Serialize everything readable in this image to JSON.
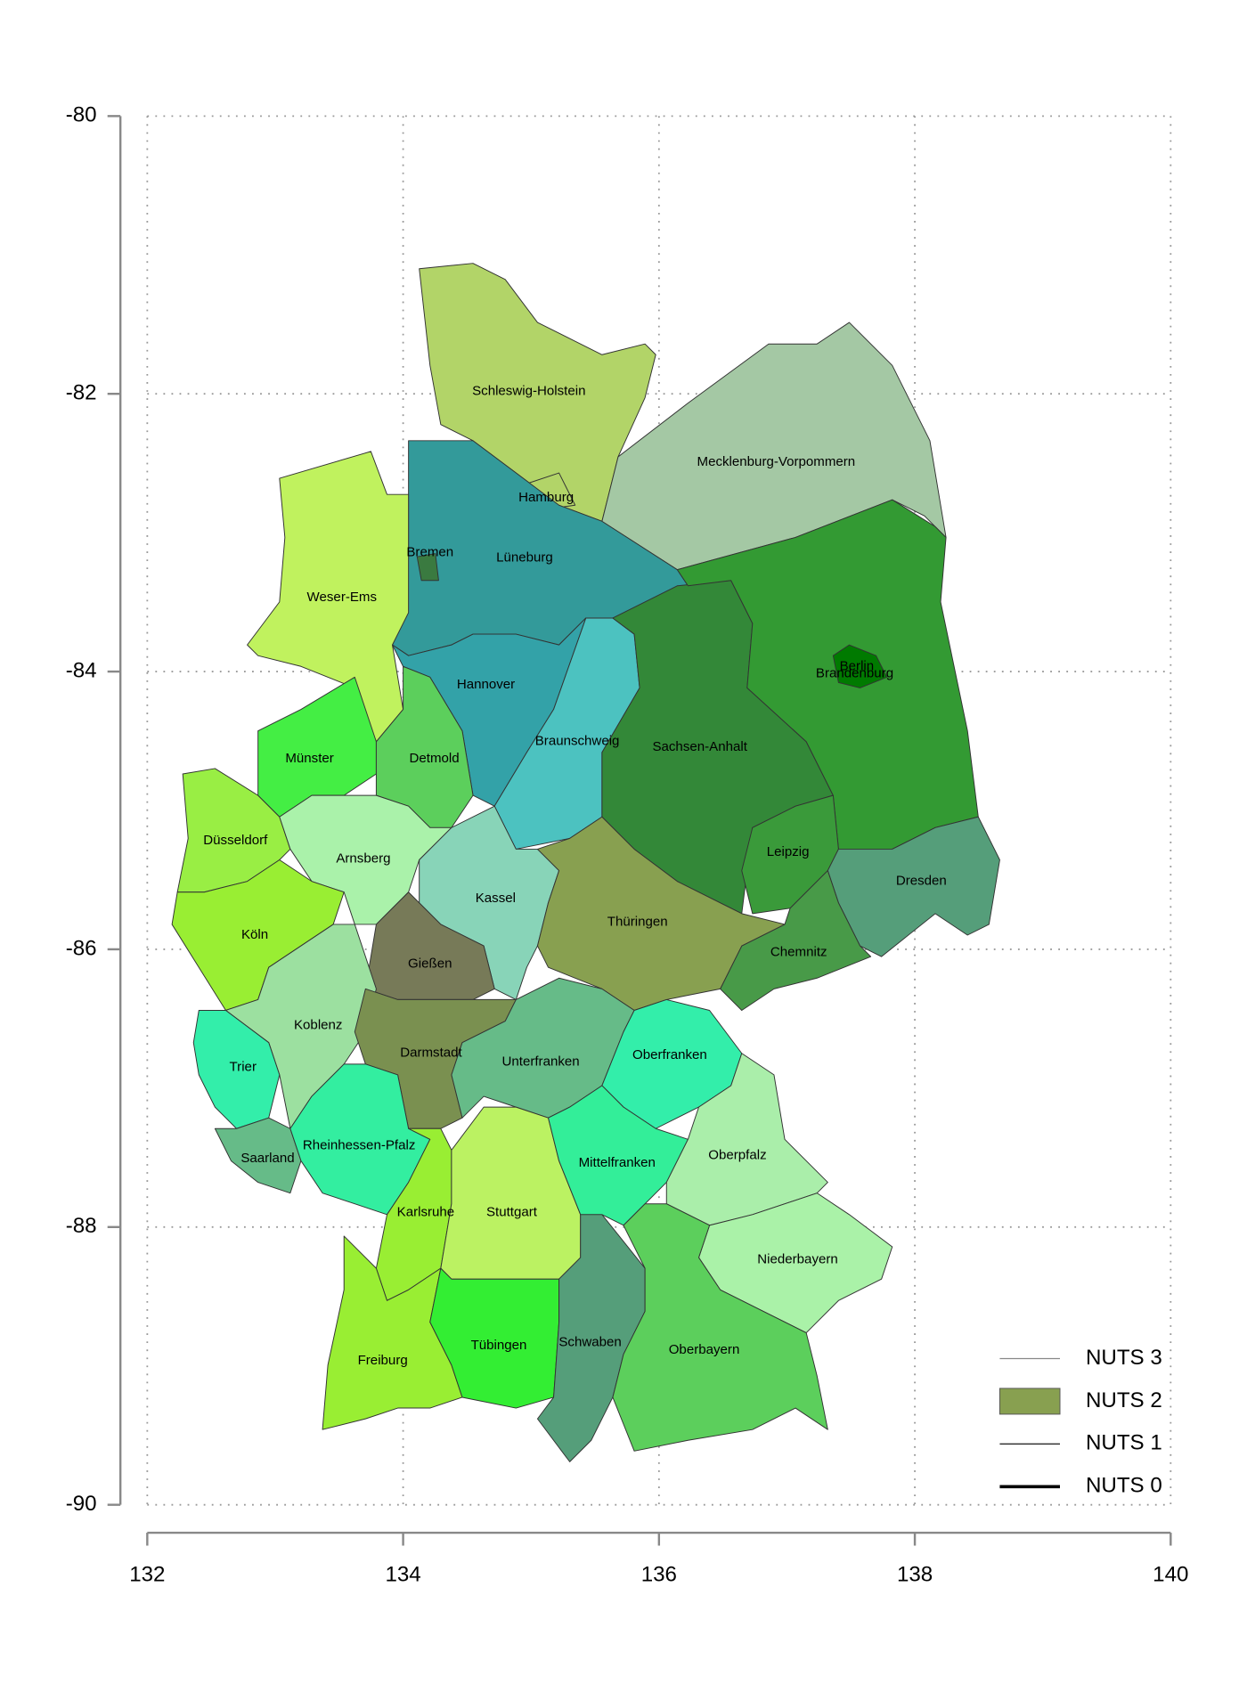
{
  "chart_data": {
    "type": "map",
    "xlim": [
      132,
      140
    ],
    "xticks": [
      132,
      134,
      136,
      138,
      140
    ],
    "ylim": [
      -90,
      -80
    ],
    "yticks": [
      -80,
      -82,
      -84,
      -86,
      -88,
      -90
    ],
    "grid": true,
    "regions": [
      {
        "name": "Schleswig-Holstein",
        "color": "#b2d468"
      },
      {
        "name": "Hamburg",
        "color": "#b2d468"
      },
      {
        "name": "Mecklenburg-Vorpommern",
        "color": "#a4c8a4"
      },
      {
        "name": "Lüneburg",
        "color": "#339a9a"
      },
      {
        "name": "Bremen",
        "color": "#3a7a40"
      },
      {
        "name": "Weser-Ems",
        "color": "#c0f25e"
      },
      {
        "name": "Hannover",
        "color": "#33a2a8"
      },
      {
        "name": "Braunschweig",
        "color": "#4cc2c0"
      },
      {
        "name": "Sachsen-Anhalt",
        "color": "#338838"
      },
      {
        "name": "Brandenburg",
        "color": "#339a33"
      },
      {
        "name": "Berlin",
        "color": "#007a00"
      },
      {
        "name": "Leipzig",
        "color": "#3a9a3a"
      },
      {
        "name": "Dresden",
        "color": "#559e7a"
      },
      {
        "name": "Chemnitz",
        "color": "#489a48"
      },
      {
        "name": "Münster",
        "color": "#44ee44"
      },
      {
        "name": "Detmold",
        "color": "#5ccf5c"
      },
      {
        "name": "Düsseldorf",
        "color": "#99ee44"
      },
      {
        "name": "Arnsberg",
        "color": "#aaf2aa"
      },
      {
        "name": "Kassel",
        "color": "#88d4b8"
      },
      {
        "name": "Köln",
        "color": "#99ee33"
      },
      {
        "name": "Gießen",
        "color": "#777a58"
      },
      {
        "name": "Thüringen",
        "color": "#88a050"
      },
      {
        "name": "Koblenz",
        "color": "#9ce0a0"
      },
      {
        "name": "Trier",
        "color": "#33eeaa"
      },
      {
        "name": "Darmstadt",
        "color": "#7a9050"
      },
      {
        "name": "Unterfranken",
        "color": "#66bb88"
      },
      {
        "name": "Oberfranken",
        "color": "#33eeaa"
      },
      {
        "name": "Saarland",
        "color": "#66bb88"
      },
      {
        "name": "Rheinhessen-Pfalz",
        "color": "#33eea0"
      },
      {
        "name": "Karlsruhe",
        "color": "#99ee33"
      },
      {
        "name": "Stuttgart",
        "color": "#bbf262"
      },
      {
        "name": "Mittelfranken",
        "color": "#33ee99"
      },
      {
        "name": "Oberpfalz",
        "color": "#aaeeaa"
      },
      {
        "name": "Niederbayern",
        "color": "#aaf2a8"
      },
      {
        "name": "Freiburg",
        "color": "#99ee33"
      },
      {
        "name": "Tübingen",
        "color": "#33ee33"
      },
      {
        "name": "Schwaben",
        "color": "#559e7a"
      },
      {
        "name": "Oberbayern",
        "color": "#5ccf5c"
      }
    ],
    "legend": [
      {
        "name": "NUTS 3",
        "color": "#888888"
      },
      {
        "name": "NUTS 2",
        "color": "#88a050"
      },
      {
        "name": "NUTS 1",
        "color": "#333333"
      },
      {
        "name": "NUTS 0",
        "color": "#000000"
      }
    ]
  }
}
